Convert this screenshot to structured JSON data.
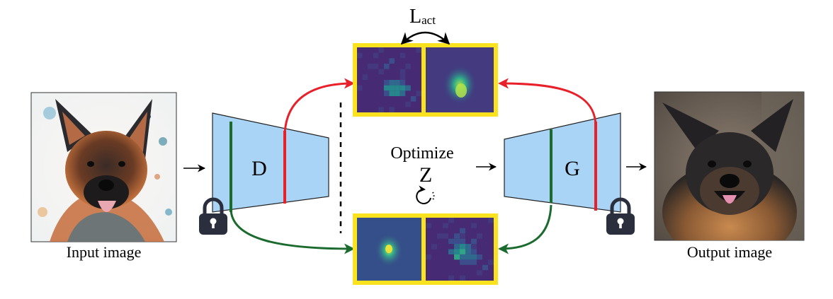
{
  "labels": {
    "input_image": "Input image",
    "output_image": "Output image",
    "discriminator": "D",
    "generator": "G",
    "optimize": "Optimize",
    "latent": "Z",
    "loss_main": "L",
    "loss_sub": "act"
  },
  "colors": {
    "network_fill": "#a9d4f5",
    "highlight_frame": "#fbe21f",
    "red_path": "#e8202a",
    "green_path": "#1b6b2f",
    "map_bg": "#462a73",
    "lock": "#2a2e3d"
  },
  "icons": {
    "lock": "lock-icon",
    "loop": "loop-arrow-icon"
  }
}
